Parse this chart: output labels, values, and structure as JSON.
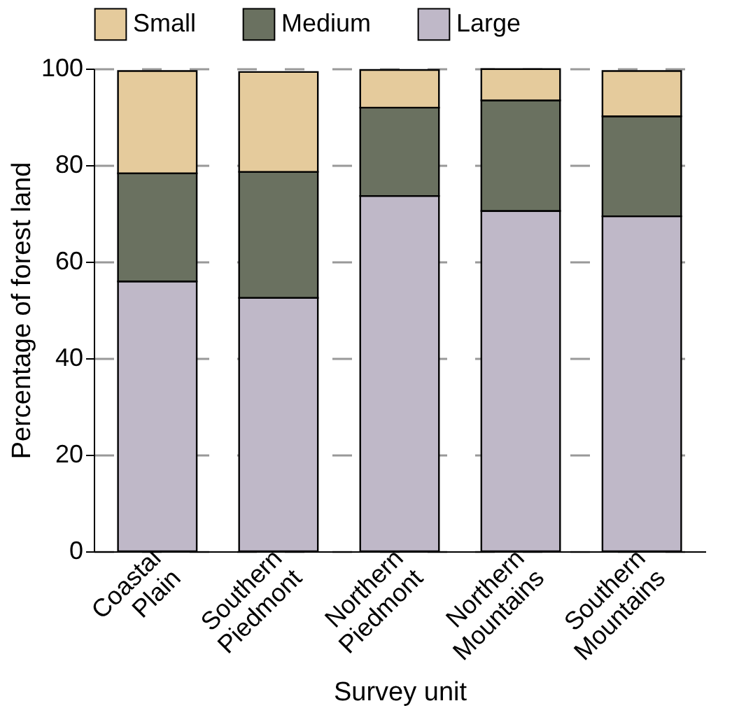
{
  "chart_data": {
    "type": "bar",
    "stacked": true,
    "xlabel": "Survey unit",
    "ylabel": "Percentage of forest land",
    "categories": [
      "Coastal Plain",
      "Southern Piedmont",
      "Northern Piedmont",
      "Northern Mountains",
      "Southern Mountains"
    ],
    "series": [
      {
        "name": "Large",
        "color": "#bfb8c8",
        "values": [
          55.9,
          52.5,
          73.6,
          70.5,
          69.4
        ]
      },
      {
        "name": "Medium",
        "color": "#6a7160",
        "values": [
          22.4,
          26.1,
          18.3,
          22.9,
          20.7
        ]
      },
      {
        "name": "Small",
        "color": "#e5cb9c",
        "values": [
          21.2,
          20.7,
          7.8,
          6.5,
          9.4
        ]
      }
    ],
    "ylim": [
      0,
      100
    ],
    "yticks": [
      0,
      20,
      40,
      60,
      80,
      100
    ],
    "grid": "y",
    "legend": "top"
  }
}
